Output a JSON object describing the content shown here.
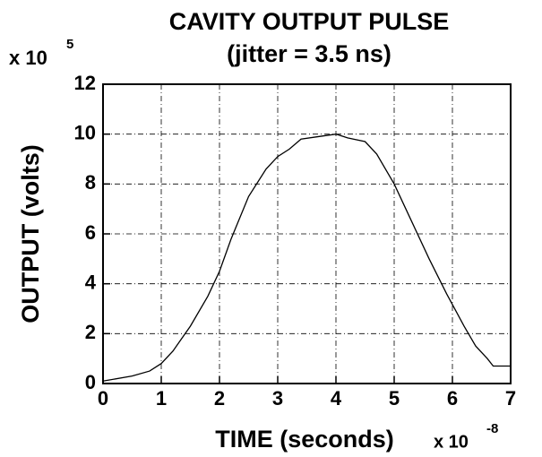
{
  "chart_data": {
    "type": "line",
    "title": "CAVITY OUTPUT PULSE",
    "subtitle": "(jitter = 3.5 ns)",
    "x_label": "TIME (seconds)",
    "y_label": "OUTPUT (volts)",
    "y_scale_label": "x 10",
    "y_scale_exponent": "5",
    "x_scale_label": "x 10",
    "x_scale_exponent": "-8",
    "x": [
      0,
      0.5,
      0.8,
      1.0,
      1.2,
      1.5,
      1.8,
      2.0,
      2.2,
      2.5,
      2.8,
      3.0,
      3.2,
      3.4,
      3.7,
      4.0,
      4.2,
      4.5,
      4.7,
      5.0,
      5.3,
      5.6,
      5.9,
      6.2,
      6.4,
      6.6,
      6.7,
      6.8,
      7.0
    ],
    "values": [
      0.1,
      0.3,
      0.5,
      0.8,
      1.3,
      2.3,
      3.5,
      4.5,
      5.8,
      7.5,
      8.6,
      9.1,
      9.4,
      9.8,
      9.9,
      10.0,
      9.85,
      9.7,
      9.2,
      8.0,
      6.5,
      5.0,
      3.6,
      2.3,
      1.5,
      1.0,
      0.7,
      0.7,
      0.7
    ],
    "color": "#000000",
    "xlim": [
      0,
      7
    ],
    "xticks": [
      0,
      1,
      2,
      3,
      4,
      5,
      6,
      7
    ],
    "ylim": [
      0,
      12
    ],
    "yticks": [
      0,
      2,
      4,
      6,
      8,
      10,
      12
    ],
    "grid": true
  }
}
